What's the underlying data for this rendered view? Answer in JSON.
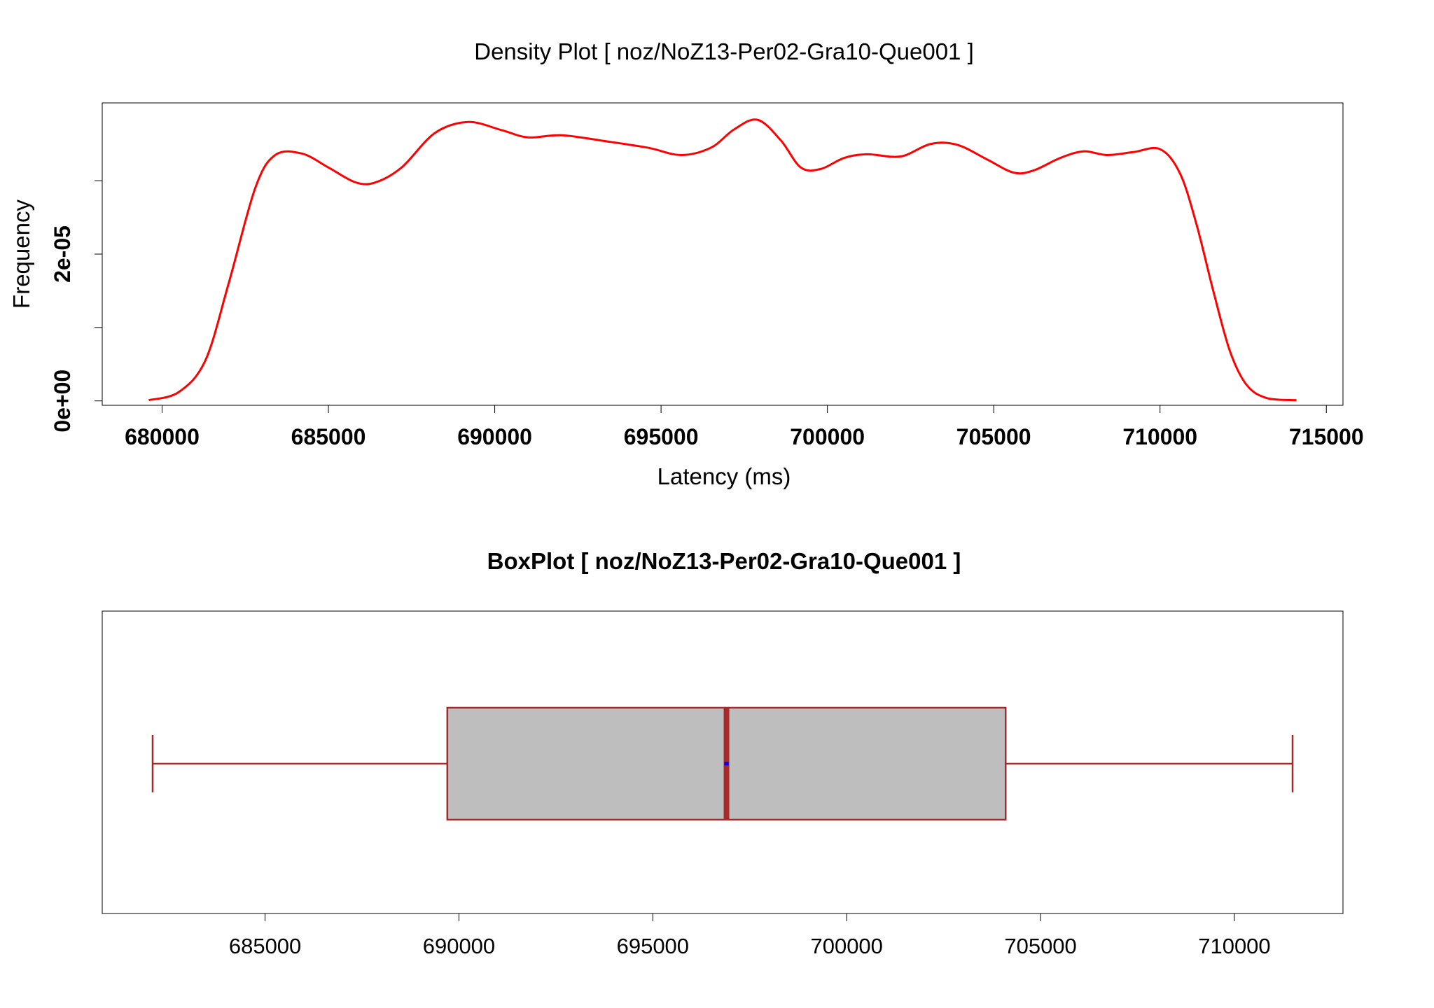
{
  "chart_data": [
    {
      "type": "line",
      "title": "Density Plot [ noz/NoZ13-Per02-Gra10-Que001 ]",
      "xlabel": "Latency (ms)",
      "ylabel": "Frequency",
      "xlim": [
        678200,
        715500
      ],
      "ylim": [
        -6e-07,
        4.06e-05
      ],
      "x_ticks": [
        680000,
        685000,
        690000,
        695000,
        700000,
        705000,
        710000,
        715000
      ],
      "x_tick_labels": [
        "680000",
        "685000",
        "690000",
        "695000",
        "700000",
        "705000",
        "710000",
        "715000"
      ],
      "y_ticks": [
        0,
        1e-05,
        2e-05,
        3e-05
      ],
      "y_tick_labels": [
        "0e+00",
        "",
        "2e-05",
        ""
      ],
      "grid": false,
      "series": [
        {
          "color": "#ff0000",
          "x": [
            679600,
            680500,
            681300,
            682000,
            682800,
            683400,
            684200,
            685000,
            685800,
            686400,
            687200,
            688200,
            689200,
            690200,
            691000,
            692000,
            693300,
            694600,
            695600,
            696500,
            697200,
            697900,
            698600,
            699200,
            699800,
            700500,
            701200,
            702200,
            703100,
            703900,
            704800,
            705600,
            706200,
            707000,
            707700,
            708400,
            709200,
            710000,
            710600,
            711100,
            711600,
            712100,
            712600,
            713200,
            714100
          ],
          "y": [
            1e-07,
            1.2e-06,
            5.5e-06,
            1.6e-05,
            2.9e-05,
            3.35e-05,
            3.37e-05,
            3.18e-05,
            2.98e-05,
            2.975e-05,
            3.18e-05,
            3.65e-05,
            3.8e-05,
            3.69e-05,
            3.59e-05,
            3.62e-05,
            3.54e-05,
            3.45e-05,
            3.35e-05,
            3.45e-05,
            3.7e-05,
            3.83e-05,
            3.55e-05,
            3.18e-05,
            3.16e-05,
            3.31e-05,
            3.36e-05,
            3.33e-05,
            3.5e-05,
            3.49e-05,
            3.29e-05,
            3.11e-05,
            3.14e-05,
            3.31e-05,
            3.4e-05,
            3.35e-05,
            3.39e-05,
            3.43e-05,
            3.1e-05,
            2.4e-05,
            1.5e-05,
            6.8e-06,
            2.2e-06,
            4e-07,
            1e-07
          ]
        }
      ]
    },
    {
      "type": "box",
      "title": "BoxPlot [ noz/NoZ13-Per02-Gra10-Que001 ]",
      "xlim": [
        680800,
        712800
      ],
      "x_ticks": [
        685000,
        690000,
        695000,
        700000,
        705000,
        710000
      ],
      "x_tick_labels": [
        "685000",
        "690000",
        "695000",
        "700000",
        "705000",
        "710000"
      ],
      "whisker_low": 682100,
      "q1": 689700,
      "median": 696900,
      "mean": 696900,
      "q3": 704100,
      "whisker_high": 711500,
      "box_fill": "#bebebe",
      "line_color": "#a52a2a",
      "mean_color": "#0000ff"
    }
  ]
}
